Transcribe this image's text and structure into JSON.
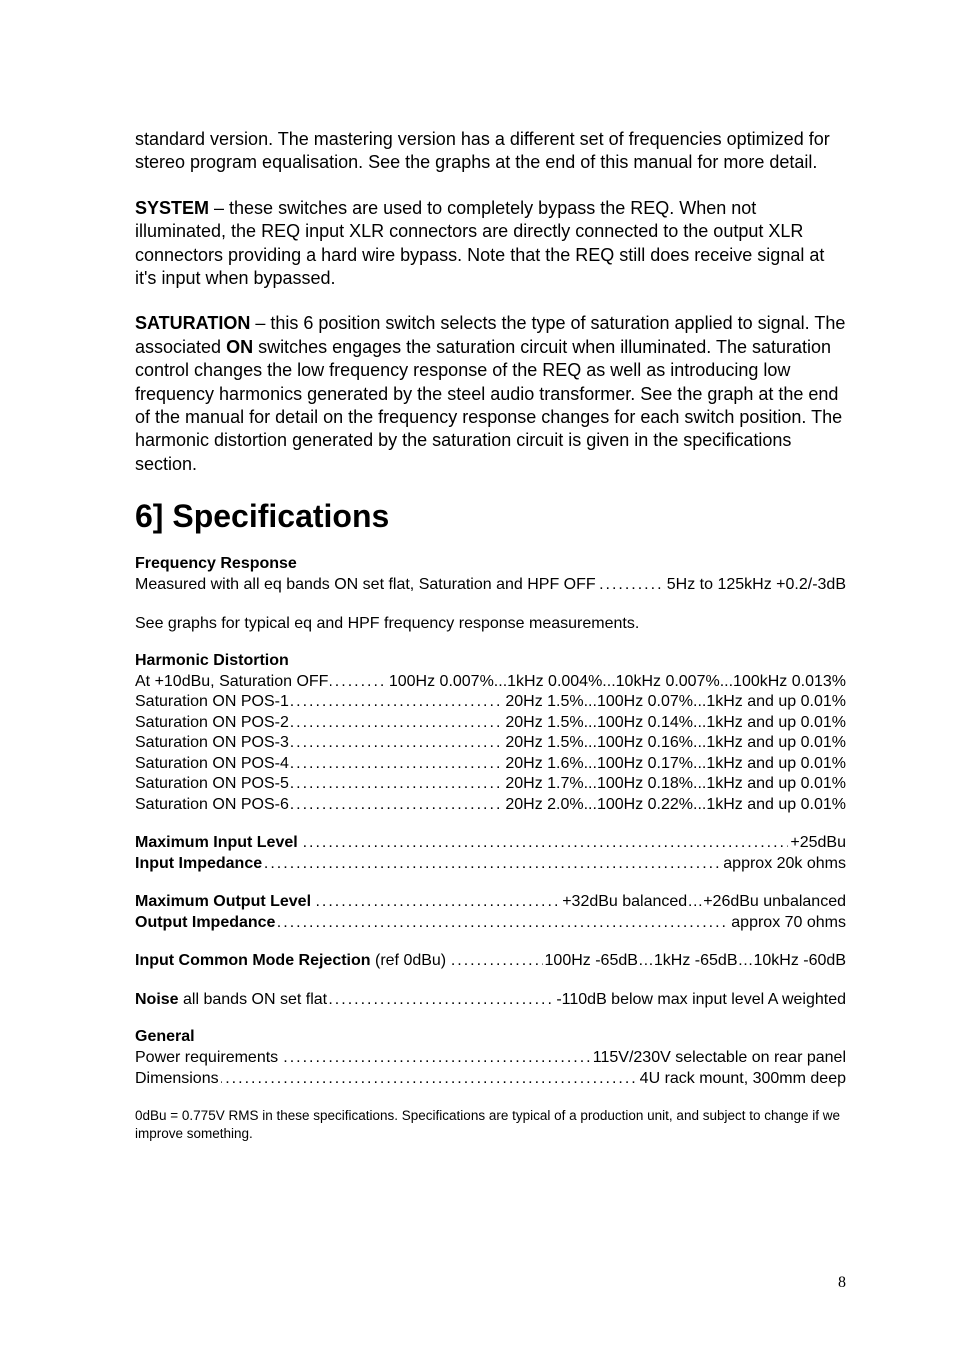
{
  "intro_para": "standard version.  The mastering version has a different set of frequencies optimized for stereo program equalisation.  See the graphs at the end of this manual for more detail.",
  "system_label": "SYSTEM",
  "system_text": " – these switches are used to completely bypass the REQ.  When not illuminated, the REQ input XLR connectors are directly connected to the output XLR connectors providing a hard wire bypass.  Note that the REQ still does receive signal at it's input when bypassed.",
  "saturation_label": "SATURATION",
  "saturation_text_1": " – this 6 position switch selects the type of saturation applied to signal.  The associated ",
  "on_label": "ON",
  "saturation_text_2": " switches engages the saturation circuit when illuminated.  The saturation control changes the low frequency response of the REQ as well as introducing low frequency harmonics generated by the steel audio transformer.  See the graph at the end of the manual for detail on the frequency response changes for each switch position.  The harmonic distortion generated by the saturation circuit is given in the specifications section.",
  "specs_heading": "6] Specifications",
  "freq_resp_heading": "Frequency Response",
  "freq_resp_measured_label": "Measured with all eq bands ON set flat, Saturation and HPF OFF",
  "freq_resp_measured_value": "5Hz to 125kHz +0.2/-3dB",
  "freq_resp_note": "See graphs for typical eq and HPF frequency response measurements.",
  "hd_heading": "Harmonic Distortion",
  "hd_rows": [
    {
      "label": "At +10dBu, Saturation OFF",
      "value": "100Hz 0.007%...1kHz 0.004%...10kHz 0.007%...100kHz 0.013%"
    },
    {
      "label": "Saturation ON POS-1 ",
      "value": "20Hz 1.5%...100Hz 0.07%...1kHz and up 0.01%"
    },
    {
      "label": "Saturation ON POS-2 ",
      "value": "20Hz 1.5%...100Hz 0.14%...1kHz and up 0.01%"
    },
    {
      "label": "Saturation ON POS-3 ",
      "value": "20Hz 1.5%...100Hz 0.16%...1kHz and up 0.01%"
    },
    {
      "label": "Saturation ON POS-4 ",
      "value": "20Hz 1.6%...100Hz 0.17%...1kHz and up 0.01%"
    },
    {
      "label": "Saturation ON POS-5 ",
      "value": "20Hz 1.7%...100Hz 0.18%...1kHz and up 0.01%"
    },
    {
      "label": "Saturation ON POS-6 ",
      "value": "20Hz 2.0%...100Hz 0.22%...1kHz and up 0.01%"
    }
  ],
  "io_rows_1": [
    {
      "label_bold": "Maximum Input Level",
      "label_rest": "",
      "value": "+25dBu"
    },
    {
      "label_bold": "Input Impedance",
      "label_rest": " ",
      "value": " approx 20k ohms"
    }
  ],
  "io_rows_2": [
    {
      "label_bold": "Maximum Output Level",
      "label_rest": "",
      "value": "+32dBu balanced…+26dBu unbalanced"
    },
    {
      "label_bold": "Output Impedance",
      "label_rest": "",
      "value": "approx 70 ohms"
    }
  ],
  "icmr": {
    "label_bold": "Input Common Mode Rejection",
    "label_rest": " (ref 0dBu) ",
    "value": " 100Hz -65dB…1kHz -65dB…10kHz -60dB"
  },
  "noise": {
    "label_bold": "Noise",
    "label_rest": " all bands ON set flat",
    "value": "-110dB below max input level A weighted"
  },
  "general_heading": "General",
  "general_rows": [
    {
      "label": "Power requirements ",
      "value": " 115V/230V selectable on rear panel"
    },
    {
      "label": "Dimensions",
      "value": "4U rack mount, 300mm deep"
    }
  ],
  "footnote": "0dBu = 0.775V RMS in these specifications.  Specifications are typical of a production unit, and subject to change if we improve something.",
  "page_number": "8",
  "colors": {
    "text": "#000000",
    "background": "#ffffff"
  }
}
